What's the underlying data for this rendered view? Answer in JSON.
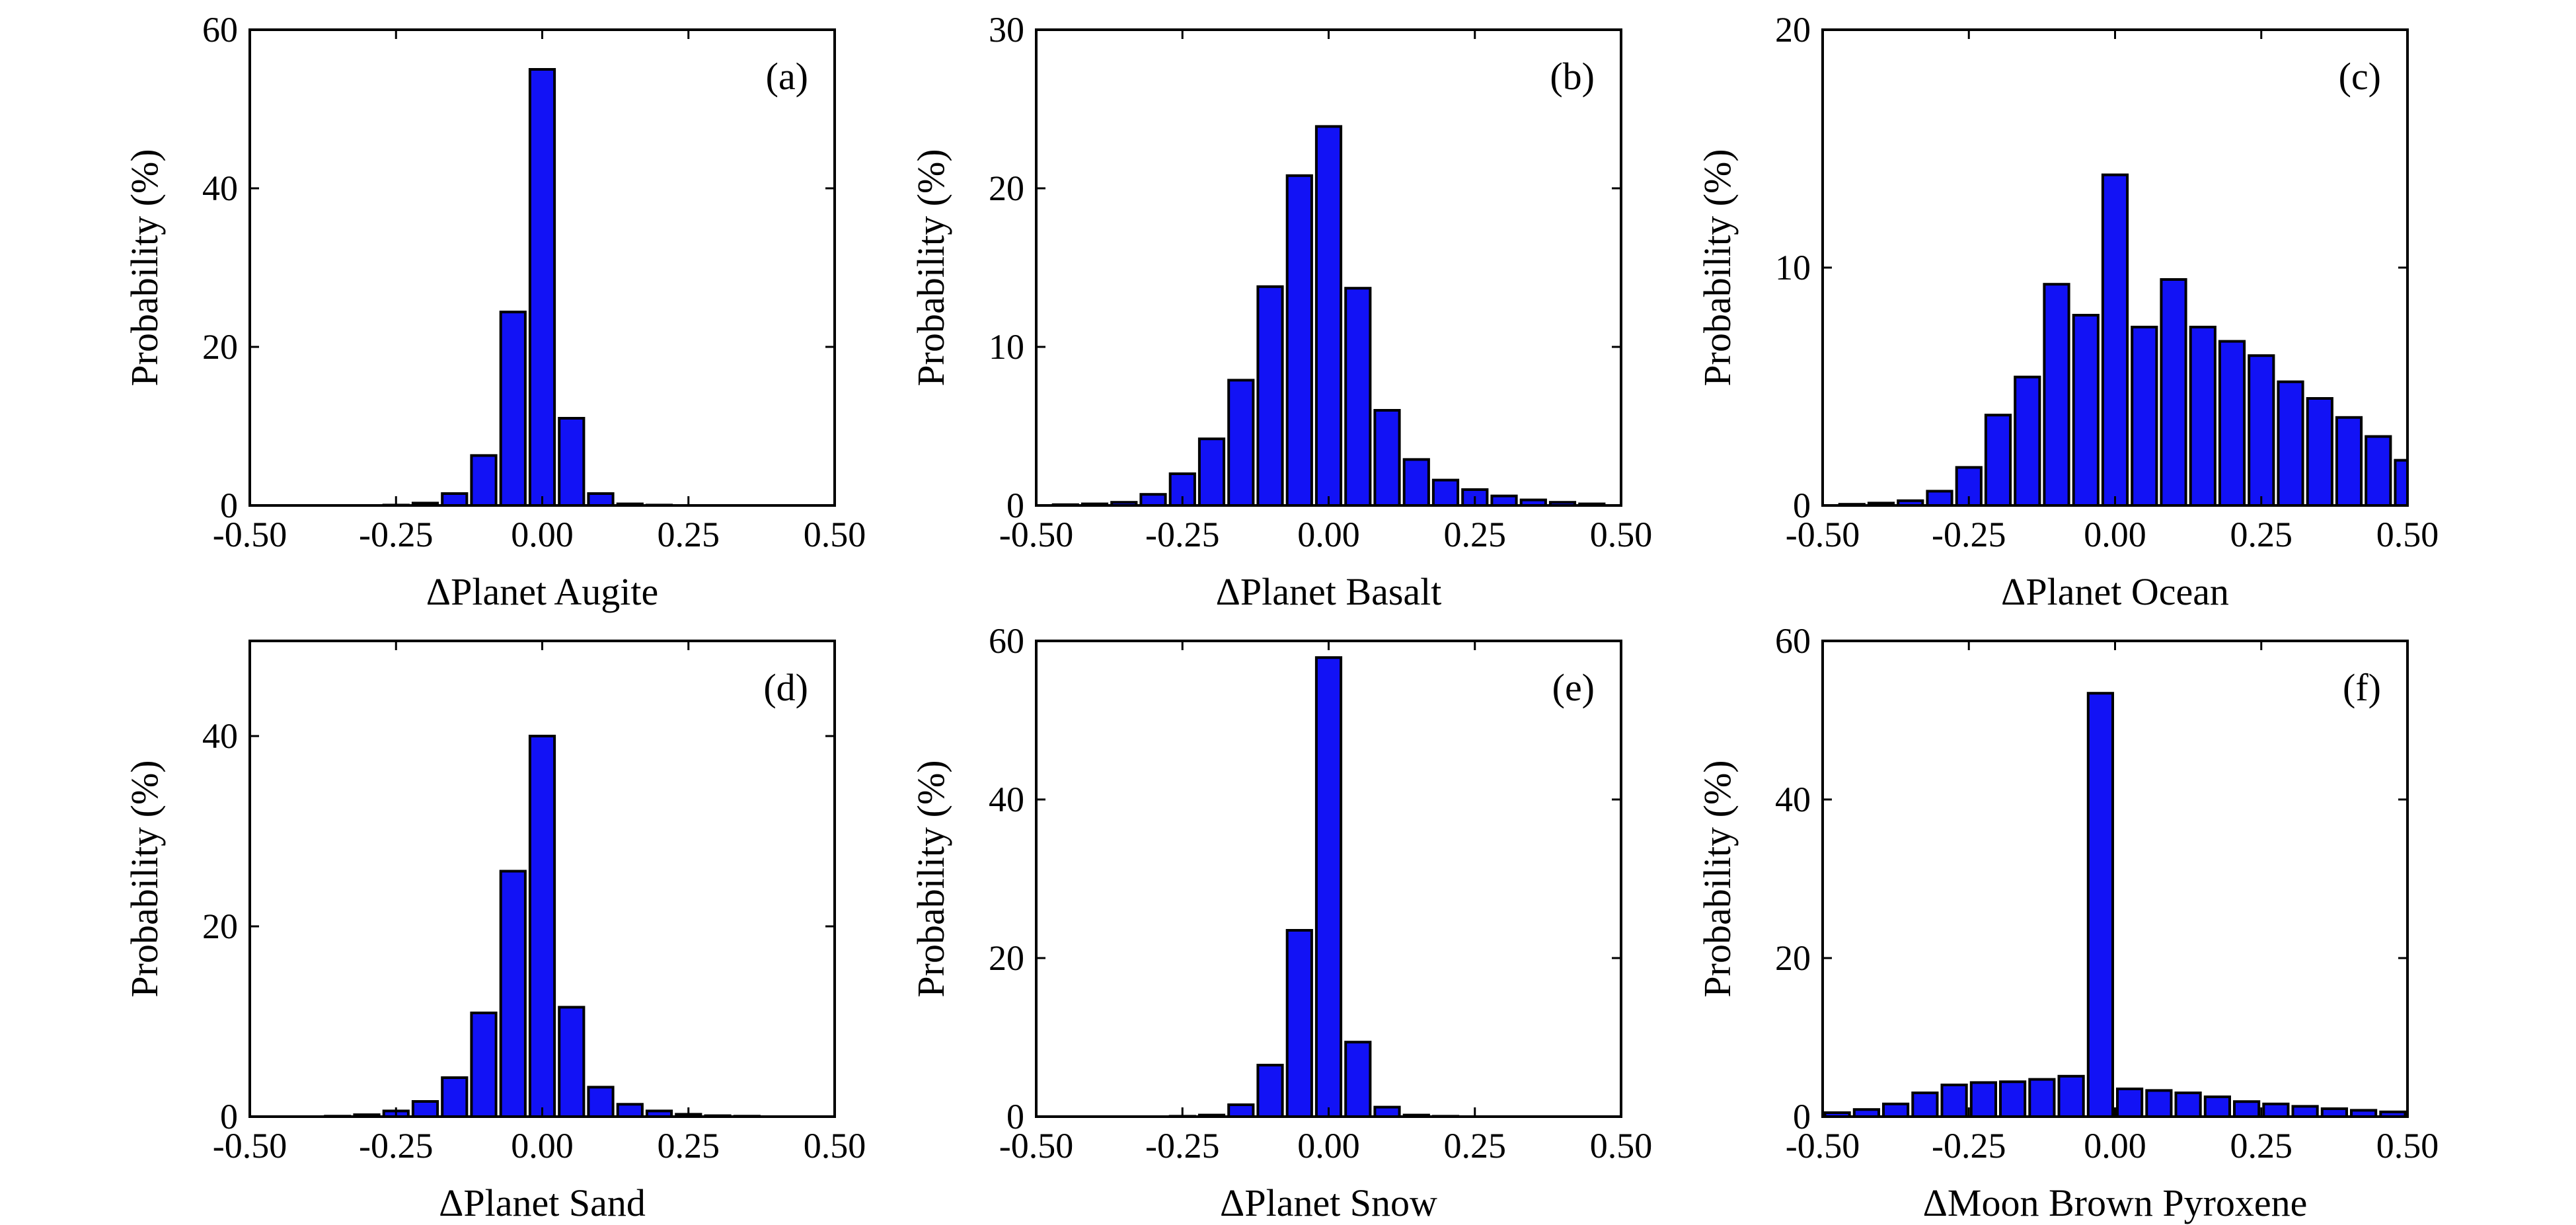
{
  "bar_color": "#1212f5",
  "bar_edge_color": "#000000",
  "chart_data": [
    {
      "type": "bar",
      "panel_label": "(a)",
      "xlabel": "ΔPlanet Augite",
      "ylabel": "Probability (%)",
      "xlim": [
        -0.5,
        0.5
      ],
      "ylim": [
        0,
        60
      ],
      "xticks": [
        "-0.50",
        "-0.25",
        "0.00",
        "0.25",
        "0.50"
      ],
      "yticks": [
        "0",
        "20",
        "40",
        "60"
      ],
      "x": [
        -0.45,
        -0.4,
        -0.35,
        -0.3,
        -0.25,
        -0.2,
        -0.15,
        -0.1,
        -0.05,
        0.0,
        0.05,
        0.1,
        0.15,
        0.2,
        0.25,
        0.3,
        0.35,
        0.4,
        0.45
      ],
      "values": [
        0.0,
        0.0,
        0.0,
        0.0,
        0.05,
        0.3,
        1.5,
        6.3,
        24.4,
        55.0,
        11.0,
        1.5,
        0.2,
        0.05,
        0.0,
        0.0,
        0.0,
        0.0,
        0.0
      ],
      "grid": false
    },
    {
      "type": "bar",
      "panel_label": "(b)",
      "xlabel": "ΔPlanet Basalt",
      "ylabel": "Probability (%)",
      "xlim": [
        -0.5,
        0.5
      ],
      "ylim": [
        0,
        30
      ],
      "xticks": [
        "-0.50",
        "-0.25",
        "0.00",
        "0.25",
        "0.50"
      ],
      "yticks": [
        "0",
        "10",
        "20",
        "30"
      ],
      "x": [
        -0.45,
        -0.4,
        -0.35,
        -0.3,
        -0.25,
        -0.2,
        -0.15,
        -0.1,
        -0.05,
        0.0,
        0.05,
        0.1,
        0.15,
        0.2,
        0.25,
        0.3,
        0.35,
        0.4,
        0.45
      ],
      "values": [
        0.05,
        0.1,
        0.2,
        0.7,
        2.0,
        4.2,
        7.9,
        13.8,
        20.8,
        23.9,
        13.7,
        6.0,
        2.9,
        1.6,
        1.0,
        0.6,
        0.35,
        0.2,
        0.1
      ],
      "grid": false
    },
    {
      "type": "bar",
      "panel_label": "(c)",
      "xlabel": "ΔPlanet Ocean",
      "ylabel": "Probability (%)",
      "xlim": [
        -0.5,
        0.5
      ],
      "ylim": [
        0,
        20
      ],
      "xticks": [
        "-0.50",
        "-0.25",
        "0.00",
        "0.25",
        "0.50"
      ],
      "yticks": [
        "0",
        "10",
        "20"
      ],
      "x": [
        -0.45,
        -0.4,
        -0.35,
        -0.3,
        -0.25,
        -0.2,
        -0.15,
        -0.1,
        -0.05,
        0.0,
        0.05,
        0.1,
        0.15,
        0.2,
        0.25,
        0.3,
        0.35,
        0.4,
        0.45,
        0.5
      ],
      "values": [
        0.05,
        0.1,
        0.2,
        0.6,
        1.6,
        3.8,
        5.4,
        9.3,
        8.0,
        13.9,
        7.5,
        9.5,
        7.5,
        6.9,
        6.3,
        5.2,
        4.5,
        3.7,
        2.9,
        1.9
      ],
      "grid": false
    },
    {
      "type": "bar",
      "panel_label": "(d)",
      "xlabel": "ΔPlanet Sand",
      "ylabel": "Probability (%)",
      "xlim": [
        -0.5,
        0.5
      ],
      "ylim": [
        0,
        50
      ],
      "xticks": [
        "-0.50",
        "-0.25",
        "0.00",
        "0.25",
        "0.50"
      ],
      "yticks": [
        "0",
        "20",
        "40"
      ],
      "x": [
        -0.45,
        -0.4,
        -0.35,
        -0.3,
        -0.25,
        -0.2,
        -0.15,
        -0.1,
        -0.05,
        0.0,
        0.05,
        0.1,
        0.15,
        0.2,
        0.25,
        0.3,
        0.35,
        0.4,
        0.45
      ],
      "values": [
        0.0,
        0.0,
        0.05,
        0.2,
        0.6,
        1.6,
        4.1,
        10.9,
        25.8,
        40.0,
        11.5,
        3.1,
        1.3,
        0.6,
        0.25,
        0.1,
        0.05,
        0.0,
        0.0
      ],
      "grid": false
    },
    {
      "type": "bar",
      "panel_label": "(e)",
      "xlabel": "ΔPlanet Snow",
      "ylabel": "Probability (%)",
      "xlim": [
        -0.5,
        0.5
      ],
      "ylim": [
        0,
        60
      ],
      "xticks": [
        "-0.50",
        "-0.25",
        "0.00",
        "0.25",
        "0.50"
      ],
      "yticks": [
        "0",
        "20",
        "40",
        "60"
      ],
      "x": [
        -0.45,
        -0.4,
        -0.35,
        -0.3,
        -0.25,
        -0.2,
        -0.15,
        -0.1,
        -0.05,
        0.0,
        0.05,
        0.1,
        0.15,
        0.2,
        0.25,
        0.3,
        0.35,
        0.4,
        0.45
      ],
      "values": [
        0.0,
        0.0,
        0.0,
        0.0,
        0.05,
        0.2,
        1.5,
        6.5,
        23.5,
        57.9,
        9.4,
        1.2,
        0.2,
        0.05,
        0.0,
        0.0,
        0.0,
        0.0,
        0.0
      ],
      "grid": false
    },
    {
      "type": "bar",
      "panel_label": "(f)",
      "xlabel": "ΔMoon Brown Pyroxene",
      "ylabel": "Probability (%)",
      "xlim": [
        -0.5,
        0.5
      ],
      "ylim": [
        0,
        60
      ],
      "xticks": [
        "-0.50",
        "-0.25",
        "0.00",
        "0.25",
        "0.50"
      ],
      "yticks": [
        "0",
        "20",
        "40",
        "60"
      ],
      "x": [
        -0.475,
        -0.425,
        -0.375,
        -0.325,
        -0.275,
        -0.225,
        -0.175,
        -0.125,
        -0.075,
        -0.025,
        0.025,
        0.075,
        0.125,
        0.175,
        0.225,
        0.275,
        0.325,
        0.375,
        0.425,
        0.475
      ],
      "values": [
        0.5,
        0.9,
        1.6,
        3.0,
        4.0,
        4.3,
        4.4,
        4.7,
        5.1,
        53.4,
        3.5,
        3.3,
        3.0,
        2.5,
        1.9,
        1.6,
        1.3,
        1.0,
        0.8,
        0.6
      ],
      "grid": false
    }
  ]
}
